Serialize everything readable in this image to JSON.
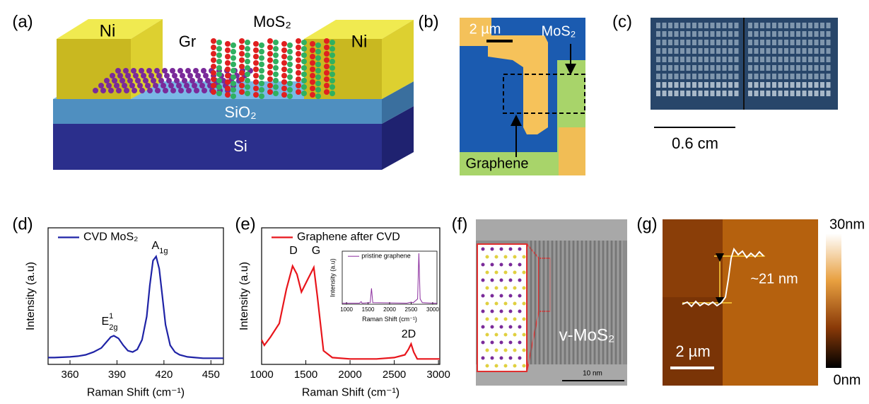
{
  "panel_labels": [
    "(a)",
    "(b)",
    "(c)",
    "(d)",
    "(e)",
    "(f)",
    "(g)"
  ],
  "a": {
    "labels": [
      "Ni",
      "Gr",
      "MoS₂",
      "Ni",
      "SiO₂",
      "Si"
    ]
  },
  "b": {
    "scale": "2 µm",
    "mos2": "MoS₂",
    "graphene": "Graphene"
  },
  "c": {
    "scale": "0.6 cm"
  },
  "f": {
    "label": "v-MoS₂",
    "scale": "10 nm"
  },
  "g": {
    "height": "~21 nm",
    "scale": "2 µm",
    "cbar_max": "30nm",
    "cbar_min": "0nm"
  },
  "chart_data": [
    {
      "type": "line",
      "x_label": "Raman Shift (cm⁻¹)",
      "y_label": "Intensity (a.u)",
      "x": [
        346,
        350,
        360,
        365,
        370,
        375,
        380,
        383,
        386,
        388,
        391,
        394,
        397,
        400,
        403,
        406,
        409,
        411,
        413,
        415,
        417,
        419,
        421,
        424,
        427,
        430,
        435,
        440,
        445,
        450,
        458
      ],
      "series": [
        {
          "name": "CVD MoS₂",
          "color": "#1f23a6",
          "values": [
            5,
            5,
            5.5,
            6,
            7,
            9,
            12,
            16,
            20,
            21,
            19,
            14,
            10,
            9,
            11,
            18,
            35,
            58,
            76,
            79,
            70,
            50,
            29,
            14,
            9,
            7,
            5.5,
            5,
            4.5,
            4.5,
            4.5
          ]
        }
      ],
      "xlim": [
        346,
        458
      ],
      "xticks": [
        360,
        390,
        420,
        450
      ],
      "ylim": [
        0,
        100
      ],
      "annotations": [
        {
          "text": "E",
          "sup": "1",
          "sub": "2g"
        },
        {
          "text": "A",
          "sub": "1g"
        }
      ]
    },
    {
      "type": "line",
      "x_label": "Raman Shift (cm⁻¹)",
      "y_label": "Intensity (a.u)",
      "x": [
        1000,
        1030,
        1100,
        1200,
        1280,
        1350,
        1400,
        1450,
        1520,
        1590,
        1630,
        1700,
        1800,
        2000,
        2300,
        2500,
        2620,
        2660,
        2690,
        2720,
        2760,
        2850,
        3015
      ],
      "series": [
        {
          "name": "Graphene after CVD",
          "color": "#e8151b",
          "values": [
            18,
            14,
            20,
            30,
            55,
            72,
            66,
            53,
            62,
            71,
            50,
            10,
            5,
            4,
            4,
            5,
            7,
            11,
            15,
            9,
            4,
            4,
            4
          ]
        }
      ],
      "xlim": [
        1000,
        3015
      ],
      "xticks": [
        1000,
        1500,
        2000,
        2500,
        3000
      ],
      "ylim": [
        0,
        100
      ],
      "annotations": [
        {
          "text": "D"
        },
        {
          "text": "G"
        },
        {
          "text": "2D"
        }
      ]
    },
    {
      "type": "line",
      "x_label": "Raman Shift (cm⁻¹)",
      "y_label": "Intensity (a.u)",
      "x": [
        900,
        1000,
        1300,
        1340,
        1360,
        1550,
        1580,
        1610,
        2400,
        2500,
        2550,
        2650,
        2680,
        2710,
        2760,
        3000,
        3100
      ],
      "series": [
        {
          "name": "pristine graphene",
          "color": "#8b2d9e",
          "values": [
            2,
            2,
            2,
            5,
            2,
            3,
            30,
            3,
            2,
            4,
            3,
            10,
            96,
            10,
            3,
            2,
            2
          ]
        }
      ],
      "xlim": [
        900,
        3100
      ],
      "xticks": [
        1000,
        1500,
        2000,
        2500,
        3000
      ],
      "ylim": [
        0,
        100
      ]
    }
  ]
}
